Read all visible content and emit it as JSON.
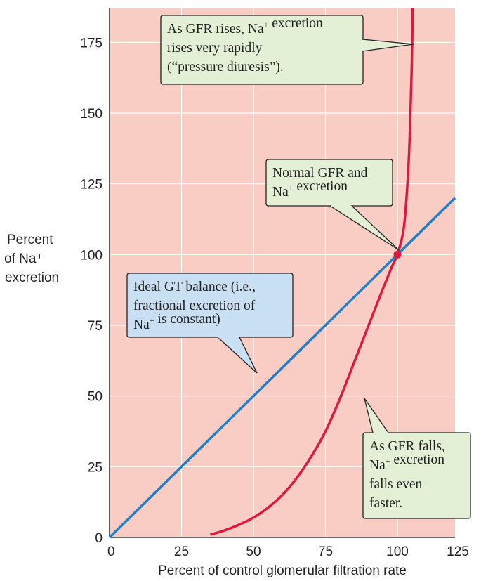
{
  "colors": {
    "plot_bg": "#f9cdc4",
    "grid": "#ffffff",
    "ideal_line": "#1f7fc9",
    "curve": "#e1173f",
    "point": "#e1173f",
    "callout_green": "#e4f0d6",
    "callout_blue": "#c9dff3"
  },
  "chart_data": {
    "type": "line",
    "xlabel": "Percent of control glomerular filtration rate",
    "ylabel_lines": [
      "Percent",
      "of Na⁺",
      "excretion"
    ],
    "xlim": [
      0,
      120
    ],
    "ylim": [
      0,
      187
    ],
    "x_ticks": [
      0,
      25,
      50,
      75,
      100,
      125
    ],
    "y_ticks": [
      0,
      25,
      50,
      75,
      100,
      125,
      150,
      175
    ],
    "grid": true,
    "series": [
      {
        "key": "ideal",
        "points": [
          [
            0,
            0
          ],
          [
            120,
            120
          ]
        ]
      },
      {
        "key": "actual",
        "points": [
          [
            35,
            1
          ],
          [
            40,
            2.5
          ],
          [
            45,
            4.5
          ],
          [
            50,
            7
          ],
          [
            55,
            10.5
          ],
          [
            60,
            15
          ],
          [
            65,
            21
          ],
          [
            70,
            28.5
          ],
          [
            75,
            37.5
          ],
          [
            80,
            49
          ],
          [
            85,
            62
          ],
          [
            90,
            75
          ],
          [
            95,
            88
          ],
          [
            98,
            95.5
          ],
          [
            100,
            100
          ],
          [
            102,
            108
          ],
          [
            103,
            118
          ],
          [
            104,
            135
          ],
          [
            104.5,
            150
          ],
          [
            105,
            168
          ],
          [
            105.3,
            187
          ]
        ]
      }
    ],
    "highlight_point": [
      100,
      100
    ],
    "annotations": [
      {
        "key": "rises",
        "style": "green",
        "lines": [
          "As GFR rises, Na+ excretion",
          "rises very rapidly",
          "(“pressure diuresis”)."
        ],
        "target": [
          105.2,
          172
        ]
      },
      {
        "key": "normal",
        "style": "green",
        "lines": [
          "Normal GFR and",
          "Na+ excretion"
        ],
        "target": [
          100,
          100
        ]
      },
      {
        "key": "ideal",
        "style": "blue",
        "lines": [
          "Ideal GT balance (i.e.,",
          "fractional excretion of",
          "Na+ is constant)"
        ],
        "target": [
          51,
          51
        ]
      },
      {
        "key": "falls",
        "style": "green",
        "lines": [
          "As GFR falls,",
          "Na+ excretion",
          "falls even",
          "faster."
        ],
        "target": [
          88,
          50
        ]
      }
    ]
  }
}
